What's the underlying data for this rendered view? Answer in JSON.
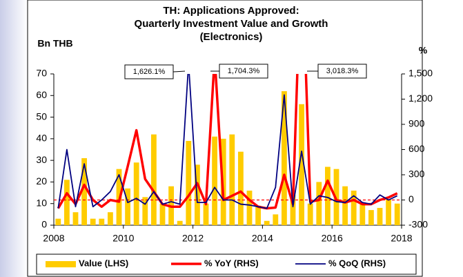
{
  "chart_data": {
    "type": "bar+line",
    "title": [
      "TH: Applications Approved:",
      "Quarterly Investment Value and Growth",
      "(Electronics)"
    ],
    "ylabel": "Bn THB",
    "y2label": "%",
    "x": [
      2008.125,
      2008.375,
      2008.625,
      2008.875,
      2009.125,
      2009.375,
      2009.625,
      2009.875,
      2010.125,
      2010.375,
      2010.625,
      2010.875,
      2011.125,
      2011.375,
      2011.625,
      2011.875,
      2012.125,
      2012.375,
      2012.625,
      2012.875,
      2013.125,
      2013.375,
      2013.625,
      2013.875,
      2014.125,
      2014.375,
      2014.625,
      2014.875,
      2015.125,
      2015.375,
      2015.625,
      2015.875,
      2016.125,
      2016.375,
      2016.625,
      2016.875,
      2017.125,
      2017.375,
      2017.625,
      2017.875
    ],
    "xlim": [
      2008,
      2018
    ],
    "xticks": [
      2008,
      2010,
      2012,
      2014,
      2016,
      2018
    ],
    "ylim": [
      0,
      70
    ],
    "yticks": [
      0,
      10,
      20,
      30,
      40,
      50,
      60,
      70
    ],
    "y2lim": [
      -300,
      1500
    ],
    "y2ticks": [
      -300,
      0,
      300,
      600,
      900,
      {
        "value": 1200,
        "label": "1,200"
      },
      {
        "value": 1500,
        "label": "1,500"
      }
    ],
    "reference_line": {
      "axis": "y2",
      "value": 0,
      "color": "#ff0000"
    },
    "series": [
      {
        "name": "Value (LHS)",
        "type": "bar",
        "color": "#ffcc00",
        "axis": "y",
        "values": [
          3,
          21,
          6,
          31,
          3,
          3,
          6,
          26,
          17,
          29,
          13,
          42,
          10,
          18,
          2,
          39,
          28,
          10,
          41,
          40,
          42,
          34,
          16,
          9,
          2,
          5,
          62,
          14,
          56,
          10,
          20,
          27,
          26,
          18,
          16,
          10,
          7,
          8,
          12,
          10
        ]
      },
      {
        "name": "% YoY (RHS)",
        "type": "line",
        "color": "#ff0000",
        "axis": "y2",
        "values": [
          -100,
          80,
          -50,
          180,
          0,
          -80,
          0,
          -20,
          400,
          830,
          250,
          100,
          -50,
          -80,
          -80,
          50,
          200,
          -50,
          1704.3,
          0,
          50,
          100,
          0,
          -80,
          -100,
          -90,
          300,
          -50,
          3018.3,
          -20,
          0,
          230,
          0,
          -30,
          0,
          -50,
          -50,
          0,
          30,
          80
        ]
      },
      {
        "name": "% QoQ (RHS)",
        "type": "line",
        "color": "#000080",
        "axis": "y2",
        "values": [
          -100,
          600,
          -80,
          430,
          -80,
          0,
          100,
          300,
          -30,
          20,
          -50,
          100,
          -50,
          -20,
          -50,
          1626.1,
          -30,
          -30,
          150,
          0,
          0,
          -50,
          -60,
          -80,
          -100,
          150,
          1250,
          -80,
          580,
          -50,
          50,
          30,
          -20,
          -30,
          50,
          -30,
          -50,
          60,
          0,
          50
        ]
      }
    ],
    "annotations": [
      "1,626.1%",
      "1,704.3%",
      "3,018.3%"
    ],
    "legend": "bottom"
  }
}
